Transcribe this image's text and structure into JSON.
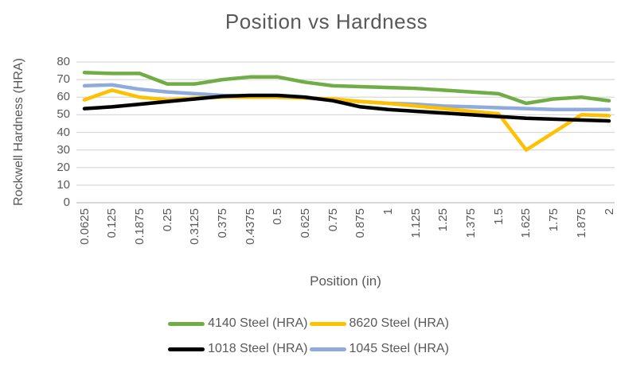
{
  "chart_data": {
    "type": "line",
    "title": "Position vs Hardness",
    "xlabel": "Position (in)",
    "ylabel": "Rockwell Hardness (HRA)",
    "ylim": [
      0,
      80
    ],
    "ytick_step": 10,
    "yticks": [
      0,
      10,
      20,
      30,
      40,
      50,
      60,
      70,
      80
    ],
    "grid": true,
    "legend_position": "bottom",
    "categories": [
      "0.0625",
      "0.125",
      "0.1875",
      "0.25",
      "0.3125",
      "0.375",
      "0.4375",
      "0.5",
      "0.625",
      "0.75",
      "0.875",
      "1",
      "1.125",
      "1.25",
      "1.375",
      "1.5",
      "1.625",
      "1.75",
      "1.875",
      "2"
    ],
    "series": [
      {
        "name": "4140 Steel (HRA)",
        "color": "#70AD47",
        "values": [
          74,
          73.5,
          73.5,
          67.5,
          67.5,
          70,
          71.5,
          71.5,
          68.5,
          66.5,
          66,
          65.5,
          65,
          64,
          63,
          62,
          56.5,
          59,
          60,
          58
        ]
      },
      {
        "name": "8620 Steel (HRA)",
        "color": "#FFC000",
        "values": [
          58.5,
          64,
          60,
          58.5,
          59.5,
          60,
          60,
          60,
          59.5,
          59,
          57.5,
          56.5,
          55,
          53.5,
          52,
          50.5,
          30,
          40,
          50,
          49.5
        ]
      },
      {
        "name": "1018 Steel (HRA)",
        "color": "#000000",
        "values": [
          53.5,
          54.5,
          56,
          57.5,
          59,
          60.5,
          61,
          61,
          60,
          58,
          54.5,
          53,
          52,
          51,
          50,
          49,
          48,
          47.5,
          47,
          46.5
        ]
      },
      {
        "name": "1045 Steel (HRA)",
        "color": "#8FAADC",
        "values": [
          66.5,
          67,
          64.5,
          63,
          62,
          61,
          60.5,
          60,
          59.5,
          58.5,
          57.5,
          56.5,
          56,
          55,
          54.5,
          54,
          53.5,
          53,
          53,
          53
        ]
      }
    ],
    "legend_rows": [
      [
        "4140 Steel (HRA)",
        "8620 Steel (HRA)"
      ],
      [
        "1018 Steel (HRA)",
        "1045 Steel (HRA)"
      ]
    ]
  },
  "colors": {
    "text": "#595959",
    "gridline": "#D9D9D9",
    "axis_line": "#BFBFBF"
  }
}
